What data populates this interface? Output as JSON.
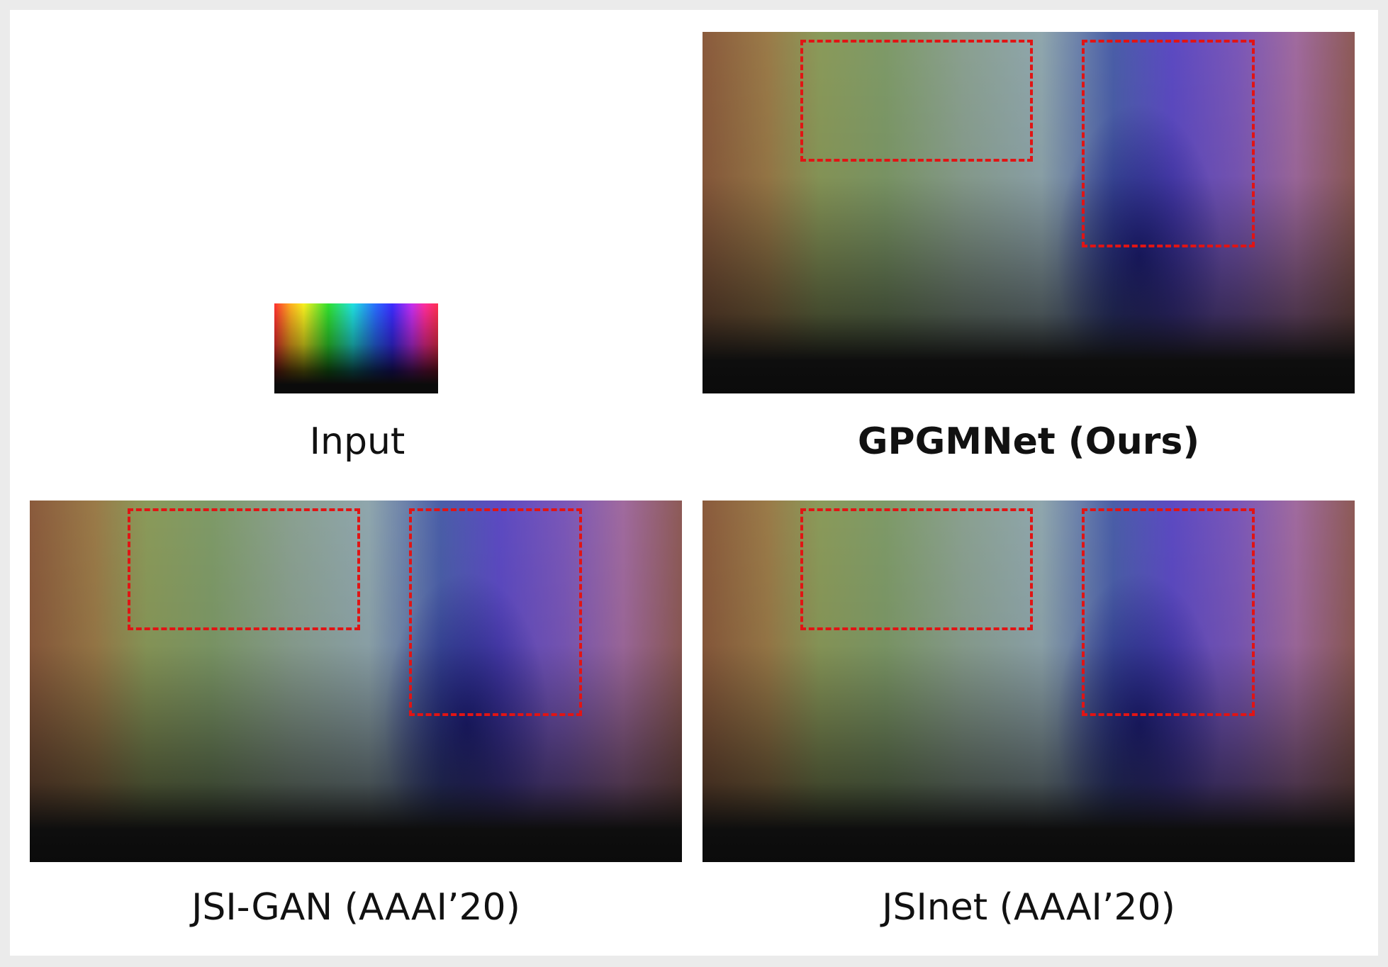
{
  "figure": {
    "panels": [
      {
        "id": "input",
        "caption": "Input"
      },
      {
        "id": "gpgmnet",
        "caption": "GPGMNet (Ours)"
      },
      {
        "id": "jsi-gan",
        "caption": "JSI-GAN (AAAI’20)"
      },
      {
        "id": "jsinet",
        "caption": "JSInet (AAAI’20)"
      }
    ],
    "roi_color": "#e11414"
  }
}
